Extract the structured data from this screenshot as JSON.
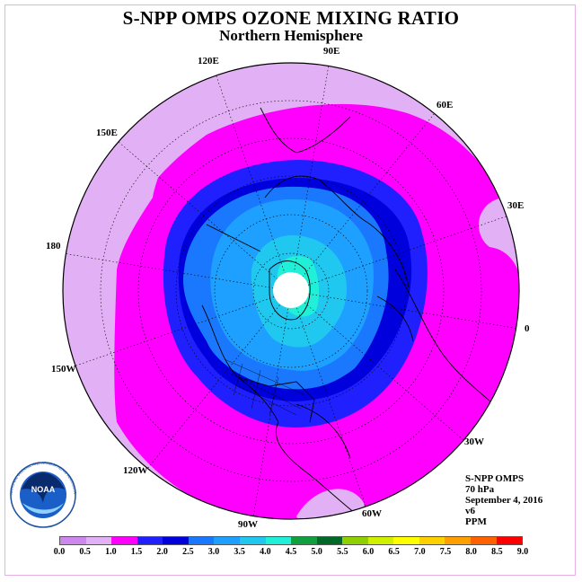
{
  "title": "S-NPP OMPS OZONE MIXING RATIO",
  "subtitle": "Northern Hemisphere",
  "longitude_labels": [
    "90E",
    "60E",
    "30E",
    "0",
    "30W",
    "60W",
    "90W",
    "120W",
    "150W",
    "180",
    "150E",
    "120E"
  ],
  "info": {
    "instrument": "S-NPP OMPS",
    "level": "70 hPa",
    "date": "September 4, 2016",
    "version": "v6",
    "units": "PPM"
  },
  "logo": {
    "text": "NOAA",
    "ring_text": "NATIONAL OCEANIC AND ATMOSPHERIC ADMINISTRATION · U.S. DEPARTMENT OF COMMERCE"
  },
  "colorbar": {
    "ticks": [
      "0.0",
      "0.5",
      "1.0",
      "1.5",
      "2.0",
      "2.5",
      "3.0",
      "3.5",
      "4.0",
      "4.5",
      "5.0",
      "5.5",
      "6.0",
      "6.5",
      "7.0",
      "7.5",
      "8.0",
      "8.5",
      "9.0"
    ],
    "colors": [
      "#cc88ee",
      "#e2b0f4",
      "#ff00ff",
      "#2020ff",
      "#0000dd",
      "#1a78ff",
      "#1da0ff",
      "#20c8f0",
      "#20f0d8",
      "#10a040",
      "#006828",
      "#90d000",
      "#d0f000",
      "#ffff00",
      "#ffd000",
      "#ffa000",
      "#ff6000",
      "#ff0000",
      "#8b5a3c"
    ]
  },
  "map_colors": {
    "outer": "#e2b0f4",
    "ppm_1_0": "#ff00ff",
    "ppm_1_5": "#2020ff",
    "ppm_2_0": "#0000dd",
    "ppm_2_5": "#1a78ff",
    "ppm_3_0": "#1da0ff",
    "ppm_3_5": "#20c8f0",
    "ppm_4_0": "#20f0d8",
    "pole_missing": "#ffffff"
  }
}
